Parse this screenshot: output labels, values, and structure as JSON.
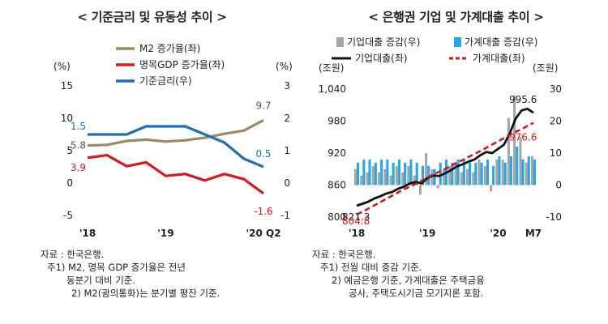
{
  "left_panel": {
    "title": "< 기준금리 및 유동성 추이 >",
    "notes": [
      "자료 : 한국은행.",
      "주1) M2, 명목 GDP 증가율은 전년",
      "동분기 대비 기준.",
      "2) M2(광의통화)는 분기별 평잔 기준."
    ]
  },
  "right_panel": {
    "title": "< 은행권 기업 및 가계대출 추이 >",
    "notes": [
      "자료 : 한국은행.",
      "주1) 전월 대비 증감 기준.",
      "2) 예금은행 기준, 가계대출은 주택금융",
      "공사, 주택도시기금 모기지론 포함."
    ]
  },
  "chart_data": [
    {
      "type": "line",
      "left_unit": "(%)",
      "right_unit": "(%)",
      "y_left": {
        "min": -5,
        "max": 15,
        "ticks": [
          "15",
          "10",
          "5",
          "0",
          "-5"
        ]
      },
      "y_right": {
        "min": -1,
        "max": 3,
        "ticks": [
          "3",
          "2",
          "1",
          "0",
          "-1"
        ]
      },
      "x_ticks": [
        {
          "label": "'18",
          "index": 0
        },
        {
          "label": "'19",
          "index": 4
        },
        {
          "label": "'20 Q2",
          "index": 9
        }
      ],
      "legend_position": "top-right",
      "grid": false,
      "series": [
        {
          "name": "M2 증가율(좌)",
          "axis": "left",
          "color": "#9c8b5e",
          "values": [
            5.8,
            5.9,
            6.5,
            6.7,
            6.4,
            6.6,
            7.0,
            7.6,
            8.1,
            9.7
          ]
        },
        {
          "name": "명목GDP 증가율(좌)",
          "axis": "left",
          "color": "#d7191c",
          "values": [
            3.9,
            4.3,
            2.6,
            3.2,
            1.1,
            1.4,
            0.4,
            1.4,
            0.6,
            -1.6
          ]
        },
        {
          "name": "기준금리(우)",
          "axis": "right",
          "color": "#1e6fb5",
          "values": [
            1.5,
            1.5,
            1.5,
            1.75,
            1.75,
            1.75,
            1.5,
            1.25,
            0.75,
            0.5
          ]
        }
      ],
      "annotations": [
        {
          "text": "9.7",
          "series": 0,
          "index": 9,
          "color": "#555555"
        },
        {
          "text": "5.8",
          "series": 0,
          "index": 0,
          "color": "#555555"
        },
        {
          "text": "3.9",
          "series": 1,
          "index": 0,
          "color": "#d7191c"
        },
        {
          "text": "-1.6",
          "series": 1,
          "index": 9,
          "color": "#d7191c"
        },
        {
          "text": "1.5",
          "series": 2,
          "index": 0,
          "color": "#1e6fb5"
        },
        {
          "text": "0.5",
          "series": 2,
          "index": 9,
          "color": "#1e6fb5"
        }
      ]
    },
    {
      "type": "bar",
      "left_unit": "(조원)",
      "right_unit": "(조원)",
      "y_left": {
        "min": 800,
        "max": 1040,
        "ticks": [
          "1,040",
          "980",
          "920",
          "860",
          "800"
        ]
      },
      "y_right": {
        "min": -10,
        "max": 30,
        "ticks": [
          "30",
          "20",
          "10",
          "0",
          "-10"
        ]
      },
      "x_ticks": [
        {
          "label": "'18",
          "index": 0
        },
        {
          "label": "'19",
          "index": 12
        },
        {
          "label": "'20",
          "index": 24
        },
        {
          "label": "M7",
          "index": 30
        }
      ],
      "legend_position": "top",
      "grid": false,
      "series": [
        {
          "name": "기업대출 증감(우)",
          "kind": "bar",
          "axis": "right",
          "color": "#a6a6a6",
          "values": [
            5,
            3,
            4,
            6,
            4,
            5,
            3,
            6,
            4,
            6,
            3,
            -3,
            10,
            5,
            -1,
            5,
            6,
            7,
            4,
            5,
            4,
            8,
            6,
            -2,
            8,
            8,
            21,
            28,
            15,
            7,
            9
          ]
        },
        {
          "name": "가계대출 증감(우)",
          "kind": "bar",
          "axis": "right",
          "color": "#2aa7e0",
          "values": [
            7,
            8,
            8,
            7,
            8,
            8,
            7,
            8,
            7,
            8,
            7,
            6,
            6,
            5,
            7,
            8,
            7,
            8,
            8,
            7,
            7,
            7,
            8,
            6,
            9,
            7,
            9,
            12,
            8,
            9,
            8
          ]
        },
        {
          "name": "기업대출(좌)",
          "kind": "line",
          "axis": "left",
          "color": "#111111",
          "values": [
            821.3,
            825,
            829,
            835,
            839,
            844,
            847,
            853,
            857,
            863,
            866,
            863,
            873,
            878,
            877,
            882,
            888,
            895,
            899,
            904,
            908,
            916,
            922,
            920,
            928,
            936,
            957,
            985,
            1000,
            1003,
            995.6
          ]
        },
        {
          "name": "가계대출(좌)",
          "kind": "line",
          "axis": "left",
          "dashed": true,
          "color": "#d7191c",
          "values": [
            804.8,
            810,
            816,
            822,
            828,
            834,
            840,
            846,
            852,
            857,
            862,
            868,
            874,
            880,
            885,
            890,
            896,
            902,
            907,
            913,
            918,
            924,
            930,
            936,
            942,
            948,
            954,
            960,
            965,
            971,
            976.6
          ]
        }
      ],
      "annotations": [
        {
          "text": "995.6",
          "series": 2,
          "index": 30,
          "color": "#222222"
        },
        {
          "text": "976.6",
          "series": 3,
          "index": 30,
          "color": "#d7191c"
        },
        {
          "text": "821.3",
          "series": 2,
          "index": 0,
          "color": "#222222"
        },
        {
          "text": "804.8",
          "series": 3,
          "index": 0,
          "color": "#d7191c"
        }
      ]
    }
  ]
}
